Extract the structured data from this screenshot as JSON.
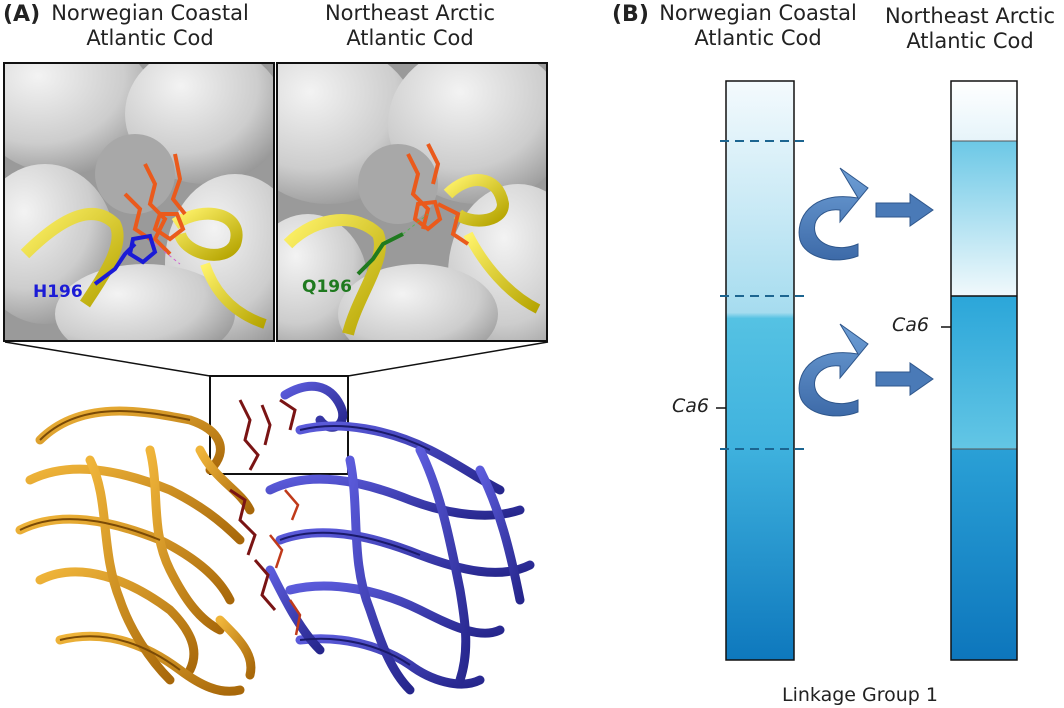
{
  "panel_a": {
    "letter": "(A)",
    "titles": {
      "left": [
        "Norwegian Coastal",
        "Atlantic Cod"
      ],
      "right": [
        "Northeast Arctic",
        "Atlantic Cod"
      ]
    },
    "residue_left": "H196",
    "residue_right": "Q196",
    "colors": {
      "protein_left": "#d4900e",
      "protein_right": "#3a3ab8",
      "helix": "#e8d800",
      "ligand": "#ea5a1c",
      "residue_left": "#1b1bd6",
      "residue_right": "#1f7a1f",
      "surface": "#c8c8c8"
    }
  },
  "panel_b": {
    "letter": "(B)",
    "titles": {
      "left": [
        "Norwegian Coastal",
        "Atlantic Cod"
      ],
      "right": [
        "Northeast Arctic",
        "Atlantic Cod"
      ]
    },
    "marker_left": "Ca6",
    "marker_right": "Ca6",
    "footer": "Linkage Group 1",
    "colors": {
      "bar_light": "#f4fafd",
      "bar_mid": "#4fc0e2",
      "bar_dark": "#0e78bd",
      "arrow": "#4a7ab7",
      "dashes": "#1c6590"
    }
  }
}
